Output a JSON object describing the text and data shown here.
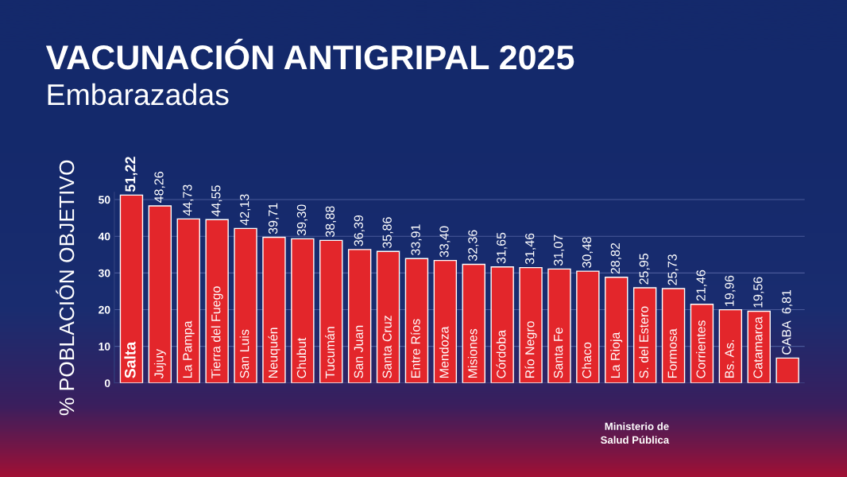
{
  "chart_data": {
    "type": "bar",
    "title": "VACUNACIÓN ANTIGRIPAL 2025",
    "subtitle": "Embarazadas",
    "ylabel": "% POBLACIÓN OBJETIVO",
    "categories": [
      "Salta",
      "Jujuy",
      "La Pampa",
      "Tierra del Fuego",
      "San Luis",
      "Neuquén",
      "Chubut",
      "Tucumán",
      "San Juan",
      "Santa Cruz",
      "Entre Ríos",
      "Mendoza",
      "Misiones",
      "Córdoba",
      "Río Negro",
      "Santa Fe",
      "Chaco",
      "La Rioja",
      "S. del Estero",
      "Formosa",
      "Corrientes",
      "Bs. As.",
      "Catamarca",
      "CABA"
    ],
    "values": [
      51.22,
      48.26,
      44.73,
      44.55,
      42.13,
      39.71,
      39.3,
      38.88,
      36.39,
      35.86,
      33.91,
      33.4,
      32.36,
      31.65,
      31.46,
      31.07,
      30.48,
      28.82,
      25.95,
      25.73,
      21.46,
      19.96,
      19.56,
      6.81
    ],
    "value_labels": [
      "51,22",
      "48,26",
      "44,73",
      "44,55",
      "42,13",
      "39,71",
      "39,30",
      "38,88",
      "36,39",
      "35,86",
      "33,91",
      "33,40",
      "32,36",
      "31,65",
      "31,46",
      "31,07",
      "30,48",
      "28,82",
      "25,95",
      "25,73",
      "21,46",
      "19,96",
      "19,56",
      "6,81"
    ],
    "color": "#e3262b",
    "ylim": [
      0,
      52
    ],
    "yticks": [
      0,
      10,
      20,
      30,
      40,
      50
    ],
    "grid": "y",
    "legend": false,
    "annotations": [
      "Ministerio de\nSalud Pública"
    ]
  }
}
